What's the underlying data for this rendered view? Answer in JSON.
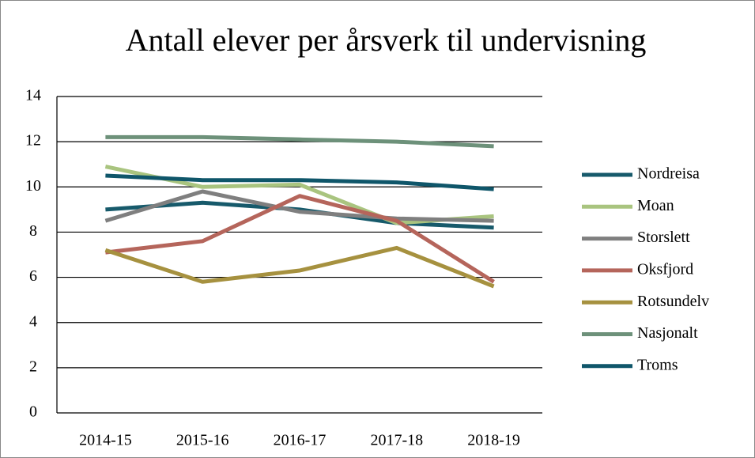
{
  "chart_data": {
    "type": "line",
    "title": "Antall elever per årsverk til undervisning",
    "categories": [
      "2014-15",
      "2015-16",
      "2016-17",
      "2017-18",
      "2018-19"
    ],
    "series": [
      {
        "name": "Nordreisa",
        "color": "#175a6b",
        "values": [
          9.0,
          9.3,
          9.0,
          8.4,
          8.2
        ]
      },
      {
        "name": "Moan",
        "color": "#a9c47f",
        "values": [
          10.9,
          10.0,
          10.1,
          8.4,
          8.7
        ]
      },
      {
        "name": "Storslett",
        "color": "#7f7f7f",
        "values": [
          8.5,
          9.8,
          8.9,
          8.6,
          8.5
        ]
      },
      {
        "name": "Oksfjord",
        "color": "#b5655b",
        "values": [
          7.1,
          7.6,
          9.6,
          8.5,
          5.8
        ]
      },
      {
        "name": "Rotsundelv",
        "color": "#a6913f",
        "values": [
          7.2,
          5.8,
          6.3,
          7.3,
          5.6
        ]
      },
      {
        "name": "Nasjonalt",
        "color": "#6d917a",
        "values": [
          12.2,
          12.2,
          12.1,
          12.0,
          11.8
        ]
      },
      {
        "name": "Troms",
        "color": "#0f566a",
        "values": [
          10.5,
          10.3,
          10.3,
          10.2,
          9.9
        ]
      }
    ],
    "ylim": [
      0,
      14
    ],
    "yticks": [
      0,
      2,
      4,
      6,
      8,
      10,
      12,
      14
    ],
    "grid": true,
    "legend": "right"
  }
}
